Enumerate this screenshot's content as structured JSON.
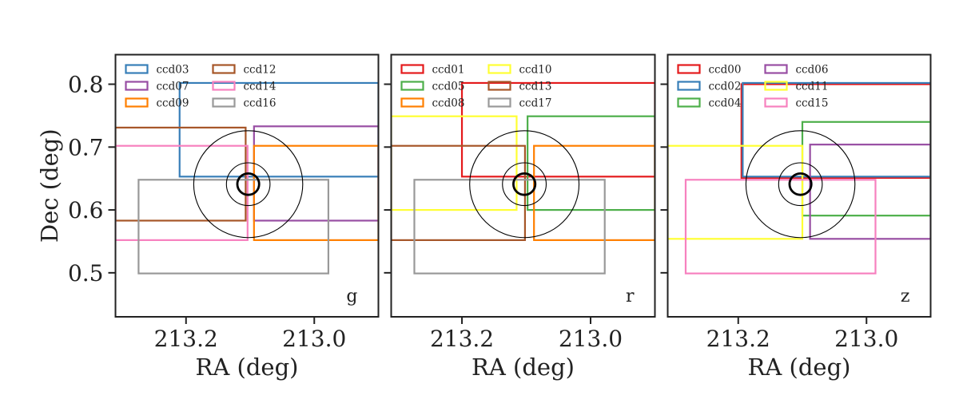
{
  "chart_data": [
    {
      "type": "scatter",
      "band_label": "g",
      "xlabel": "RA (deg)",
      "ylabel": "Dec (deg)",
      "xlim": [
        213.31,
        212.9
      ],
      "ylim": [
        0.43,
        0.847
      ],
      "xticks": [
        213.2,
        213.0
      ],
      "xtick_labels": [
        "213.2",
        "213.0"
      ],
      "yticks": [
        0.5,
        0.6,
        0.7,
        0.8
      ],
      "ytick_labels": [
        "0.5",
        "0.6",
        "0.7",
        "0.8"
      ],
      "circles": {
        "center": [
          213.103,
          0.641
        ],
        "radii": [
          0.085,
          0.034,
          0.017
        ]
      },
      "series": [
        {
          "name": "ccd03",
          "color": "#377eb8",
          "rect": {
            "ra": [
              213.21,
              212.9
            ],
            "dec": [
              0.653,
              0.802
            ]
          }
        },
        {
          "name": "ccd07",
          "color": "#984ea3",
          "rect": {
            "ra": [
              213.094,
              212.9
            ],
            "dec": [
              0.583,
              0.733
            ]
          }
        },
        {
          "name": "ccd09",
          "color": "#ff7f00",
          "rect": {
            "ra": [
              213.094,
              212.9
            ],
            "dec": [
              0.552,
              0.702
            ]
          }
        },
        {
          "name": "ccd12",
          "color": "#a65628",
          "rect": {
            "ra": [
              213.31,
              213.107
            ],
            "dec": [
              0.583,
              0.731
            ]
          }
        },
        {
          "name": "ccd14",
          "color": "#f781bf",
          "rect": {
            "ra": [
              213.31,
              213.104
            ],
            "dec": [
              0.552,
              0.702
            ]
          }
        },
        {
          "name": "ccd16",
          "color": "#999999",
          "rect": {
            "ra": [
              213.274,
              212.978
            ],
            "dec": [
              0.499,
              0.648
            ]
          }
        }
      ]
    },
    {
      "type": "scatter",
      "band_label": "r",
      "xlabel": "RA (deg)",
      "ylabel": "",
      "xlim": [
        213.31,
        212.9
      ],
      "ylim": [
        0.43,
        0.847
      ],
      "xticks": [
        213.2,
        213.0
      ],
      "xtick_labels": [
        "213.2",
        "213.0"
      ],
      "yticks": [
        0.5,
        0.6,
        0.7,
        0.8
      ],
      "ytick_labels": [],
      "circles": {
        "center": [
          213.103,
          0.641
        ],
        "radii": [
          0.085,
          0.034,
          0.017
        ]
      },
      "series": [
        {
          "name": "ccd01",
          "color": "#e41a1c",
          "rect": {
            "ra": [
              213.2,
              212.9
            ],
            "dec": [
              0.653,
              0.802
            ]
          }
        },
        {
          "name": "ccd05",
          "color": "#4daf4a",
          "rect": {
            "ra": [
              213.098,
              212.9
            ],
            "dec": [
              0.6,
              0.749
            ]
          }
        },
        {
          "name": "ccd08",
          "color": "#ff7f00",
          "rect": {
            "ra": [
              213.088,
              212.9
            ],
            "dec": [
              0.552,
              0.702
            ]
          }
        },
        {
          "name": "ccd10",
          "color": "#ffff33",
          "rect": {
            "ra": [
              213.31,
              213.115
            ],
            "dec": [
              0.6,
              0.749
            ]
          }
        },
        {
          "name": "ccd13",
          "color": "#a65628",
          "rect": {
            "ra": [
              213.31,
              213.102
            ],
            "dec": [
              0.552,
              0.702
            ]
          }
        },
        {
          "name": "ccd17",
          "color": "#999999",
          "rect": {
            "ra": [
              213.274,
              212.978
            ],
            "dec": [
              0.499,
              0.648
            ]
          }
        }
      ]
    },
    {
      "type": "scatter",
      "band_label": "z",
      "xlabel": "RA (deg)",
      "ylabel": "",
      "xlim": [
        213.31,
        212.9
      ],
      "ylim": [
        0.43,
        0.847
      ],
      "xticks": [
        213.2,
        213.0
      ],
      "xtick_labels": [
        "213.2",
        "213.0"
      ],
      "yticks": [
        0.5,
        0.6,
        0.7,
        0.8
      ],
      "ytick_labels": [],
      "circles": {
        "center": [
          213.103,
          0.641
        ],
        "radii": [
          0.085,
          0.034,
          0.017
        ]
      },
      "series": [
        {
          "name": "ccd00",
          "color": "#e41a1c",
          "rect": {
            "ra": [
              213.195,
              212.9
            ],
            "dec": [
              0.651,
              0.8
            ]
          }
        },
        {
          "name": "ccd02",
          "color": "#377eb8",
          "rect": {
            "ra": [
              213.193,
              212.9
            ],
            "dec": [
              0.653,
              0.802
            ]
          }
        },
        {
          "name": "ccd04",
          "color": "#4daf4a",
          "rect": {
            "ra": [
              213.1,
              212.9
            ],
            "dec": [
              0.591,
              0.74
            ]
          }
        },
        {
          "name": "ccd06",
          "color": "#984ea3",
          "rect": {
            "ra": [
              213.088,
              212.9
            ],
            "dec": [
              0.554,
              0.704
            ]
          }
        },
        {
          "name": "ccd11",
          "color": "#ffff33",
          "rect": {
            "ra": [
              213.31,
              213.1
            ],
            "dec": [
              0.554,
              0.702
            ]
          }
        },
        {
          "name": "ccd15",
          "color": "#f781bf",
          "rect": {
            "ra": [
              213.282,
              212.986
            ],
            "dec": [
              0.499,
              0.648
            ]
          }
        }
      ]
    }
  ]
}
